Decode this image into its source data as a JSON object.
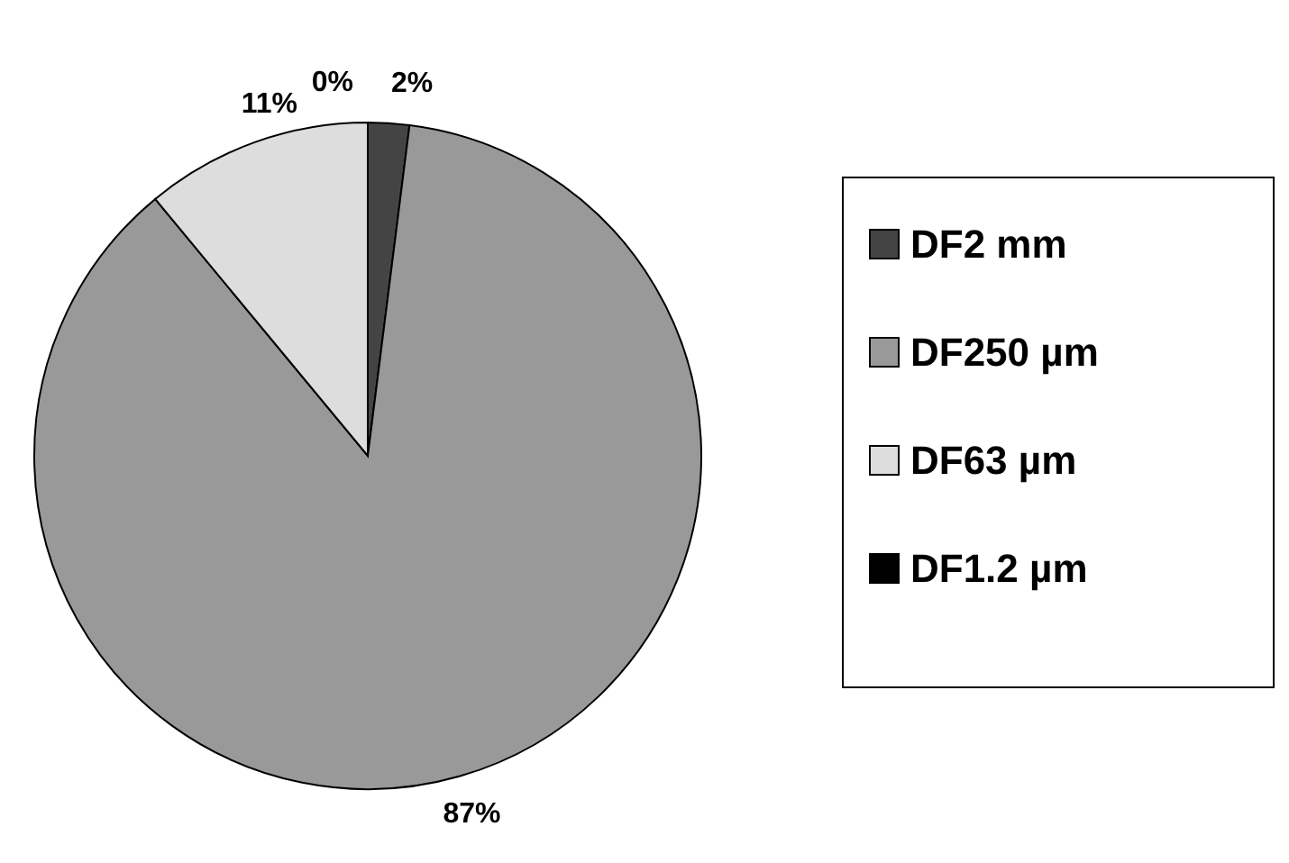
{
  "chart_data": {
    "type": "pie",
    "categories": [
      "DF2 mm",
      "DF250 µm",
      "DF63 µm",
      "DF1.2 µm"
    ],
    "values": [
      2,
      87,
      11,
      0
    ],
    "colors": [
      "#444444",
      "#999999",
      "#dddddd",
      "#000000"
    ],
    "value_labels": [
      "2%",
      "87%",
      "11%",
      "0%"
    ],
    "legend": "right"
  }
}
